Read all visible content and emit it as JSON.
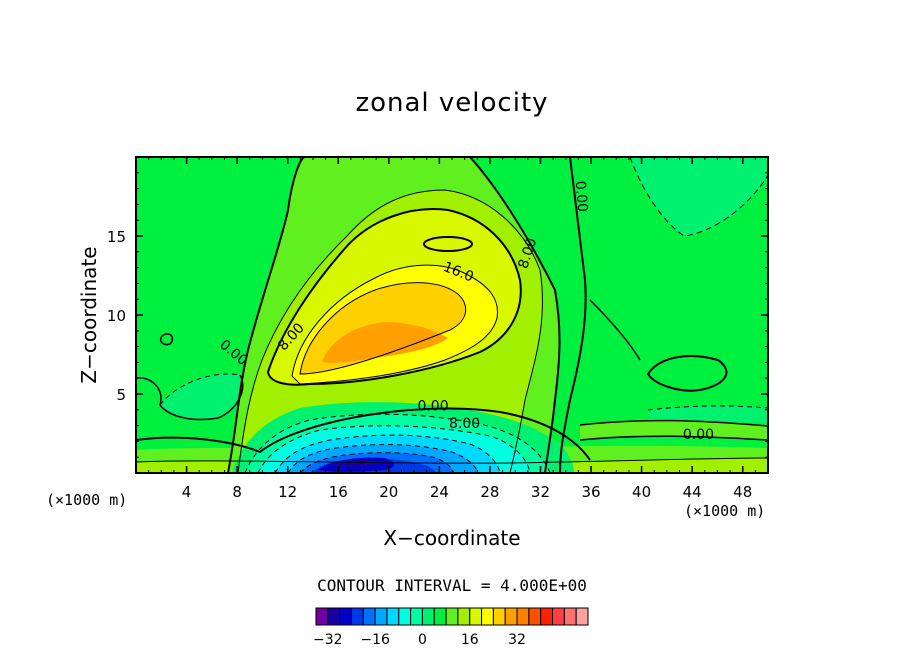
{
  "chart_data": {
    "type": "contour",
    "title": "zonal velocity",
    "xlabel": "X−coordinate",
    "ylabel": "Z−coordinate",
    "x_units_left": "(×1000 m)",
    "x_units_right": "(×1000 m)",
    "xlim": [
      0,
      50
    ],
    "ylim": [
      0,
      20
    ],
    "x_ticks": [
      "4",
      "8",
      "12",
      "16",
      "20",
      "24",
      "28",
      "32",
      "36",
      "40",
      "44",
      "48"
    ],
    "y_ticks": [
      "5",
      "10",
      "15"
    ],
    "contour_interval_text": "CONTOUR INTERVAL = 4.000E+00",
    "contour_labels": [
      {
        "text": "0.00",
        "x": 7.7,
        "z": 7.6,
        "angle": 40
      },
      {
        "text": "8.00",
        "x": 12.3,
        "z": 8.6,
        "angle": -48
      },
      {
        "text": "16.0",
        "x": 25.5,
        "z": 12.7,
        "angle": 22
      },
      {
        "text": "8.00",
        "x": 31,
        "z": 13.9,
        "angle": -72
      },
      {
        "text": "0.00",
        "x": 35.2,
        "z": 17.5,
        "angle": 85
      },
      {
        "text": "0.00",
        "x": 23.5,
        "z": 4.2,
        "angle": 0
      },
      {
        "text": "8.00",
        "x": 26,
        "z": 3.1,
        "angle": 0
      },
      {
        "text": "0.00",
        "x": 44.5,
        "z": 2.4,
        "angle": 0
      }
    ],
    "features": [
      {
        "name": "positive jet core",
        "x_center": 20,
        "z_center": 8,
        "max_value": 20
      },
      {
        "name": "negative near-surface minimum",
        "x_center": 18.5,
        "z_center": 0.8,
        "min_value": -32
      }
    ],
    "colorbar": {
      "ticks": [
        "−32",
        "−16",
        "0",
        "16",
        "32"
      ],
      "min": -36,
      "max": 36,
      "interval": 4,
      "colors": [
        "#7000a0",
        "#1800a0",
        "#0000c8",
        "#0038e8",
        "#0070ff",
        "#00a8ff",
        "#00d8ff",
        "#00ffe0",
        "#00ffa0",
        "#00f070",
        "#00f040",
        "#60f020",
        "#a0f000",
        "#d8f800",
        "#ffff00",
        "#ffd000",
        "#ffa000",
        "#ff8000",
        "#ff5000",
        "#ff2000",
        "#ff4040",
        "#ff7070",
        "#ffa0a0"
      ]
    }
  }
}
